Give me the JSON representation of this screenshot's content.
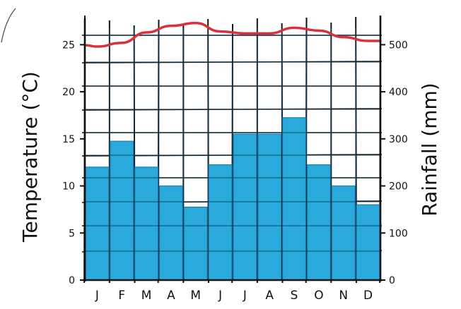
{
  "chart_data": {
    "type": "bar+line",
    "title": "",
    "categories": [
      "J",
      "F",
      "M",
      "A",
      "M",
      "J",
      "J",
      "A",
      "S",
      "O",
      "N",
      "D"
    ],
    "rainfall": {
      "axis": "right",
      "values": [
        240,
        295,
        240,
        200,
        155,
        245,
        310,
        310,
        345,
        245,
        200,
        160
      ],
      "color": "#29a9dc"
    },
    "temperature": {
      "axis": "left",
      "values": [
        24.8,
        25.2,
        26.3,
        27.0,
        27.3,
        26.4,
        26.2,
        26.2,
        26.8,
        26.5,
        25.8,
        25.4
      ],
      "color": "#d9303a"
    },
    "left_axis": {
      "label": "Temperature (°C)",
      "ticks": [
        "0",
        "5",
        "10",
        "15",
        "20",
        "25"
      ],
      "range": [
        0,
        27.5
      ]
    },
    "right_axis": {
      "label": "Rainfall (mm)",
      "ticks": [
        "0",
        "100",
        "200",
        "300",
        "400",
        "500"
      ],
      "range": [
        0,
        550
      ]
    },
    "grid": true
  }
}
